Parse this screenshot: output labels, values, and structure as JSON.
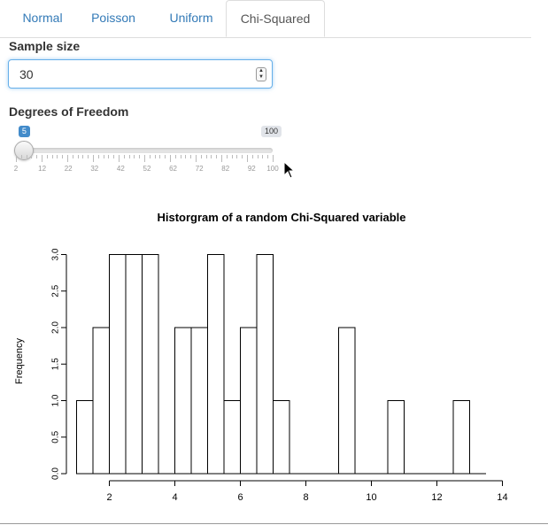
{
  "tabs": [
    {
      "label": "Normal",
      "active": false
    },
    {
      "label": "Poisson",
      "active": false
    },
    {
      "label": "Uniform",
      "active": false
    },
    {
      "label": "Chi-Squared",
      "active": true
    }
  ],
  "sample_size": {
    "label": "Sample size",
    "value": "30"
  },
  "dof": {
    "label": "Degrees of Freedom",
    "value": 5,
    "value_label": "5",
    "min": 2,
    "max": 100,
    "max_label": "100",
    "tick_labels": [
      "2",
      "12",
      "22",
      "32",
      "42",
      "52",
      "62",
      "72",
      "82",
      "92",
      "100"
    ]
  },
  "accent_color": "#428bca",
  "chart_data": {
    "type": "bar",
    "title": "Historgram of a random Chi-Squared variable",
    "xlabel": "",
    "ylabel": "Frequency",
    "bin_edges": [
      1.0,
      1.5,
      2.0,
      2.5,
      3.0,
      3.5,
      4.0,
      4.5,
      5.0,
      5.5,
      6.0,
      6.5,
      7.0,
      7.5,
      8.0,
      8.5,
      9.0,
      9.5,
      10.0,
      10.5,
      11.0,
      11.5,
      12.0,
      12.5,
      13.0,
      13.5
    ],
    "values": [
      1,
      2,
      3,
      3,
      3,
      0,
      2,
      2,
      3,
      1,
      2,
      3,
      1,
      0,
      0,
      0,
      2,
      0,
      0,
      1,
      0,
      0,
      0,
      1,
      0
    ],
    "xlim": [
      1,
      14
    ],
    "ylim": [
      0,
      3
    ],
    "x_ticks": [
      "2",
      "4",
      "6",
      "8",
      "10",
      "12",
      "14"
    ],
    "y_ticks": [
      "0.0",
      "0.5",
      "1.0",
      "1.5",
      "2.0",
      "2.5",
      "3.0"
    ],
    "grid": false
  }
}
